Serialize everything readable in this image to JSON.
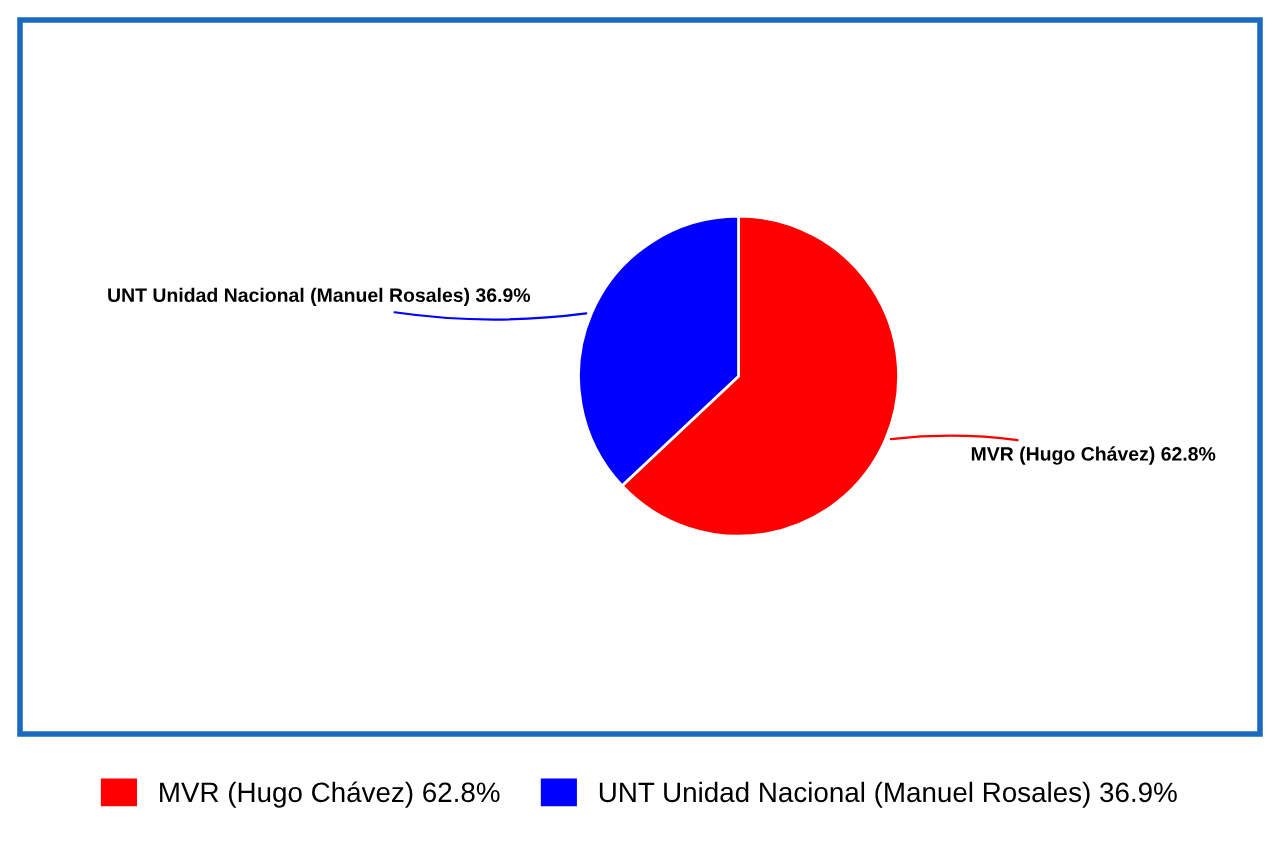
{
  "chart_data": {
    "type": "pie",
    "categories": [
      "MVR (Hugo Chávez)",
      "UNT Unidad Nacional (Manuel Rosales)"
    ],
    "values": [
      62.8,
      36.9
    ],
    "value_labels": [
      "62.8%",
      "36.9%"
    ],
    "colors": [
      "#ff0000",
      "#0000ff"
    ],
    "legend": "bottom"
  }
}
